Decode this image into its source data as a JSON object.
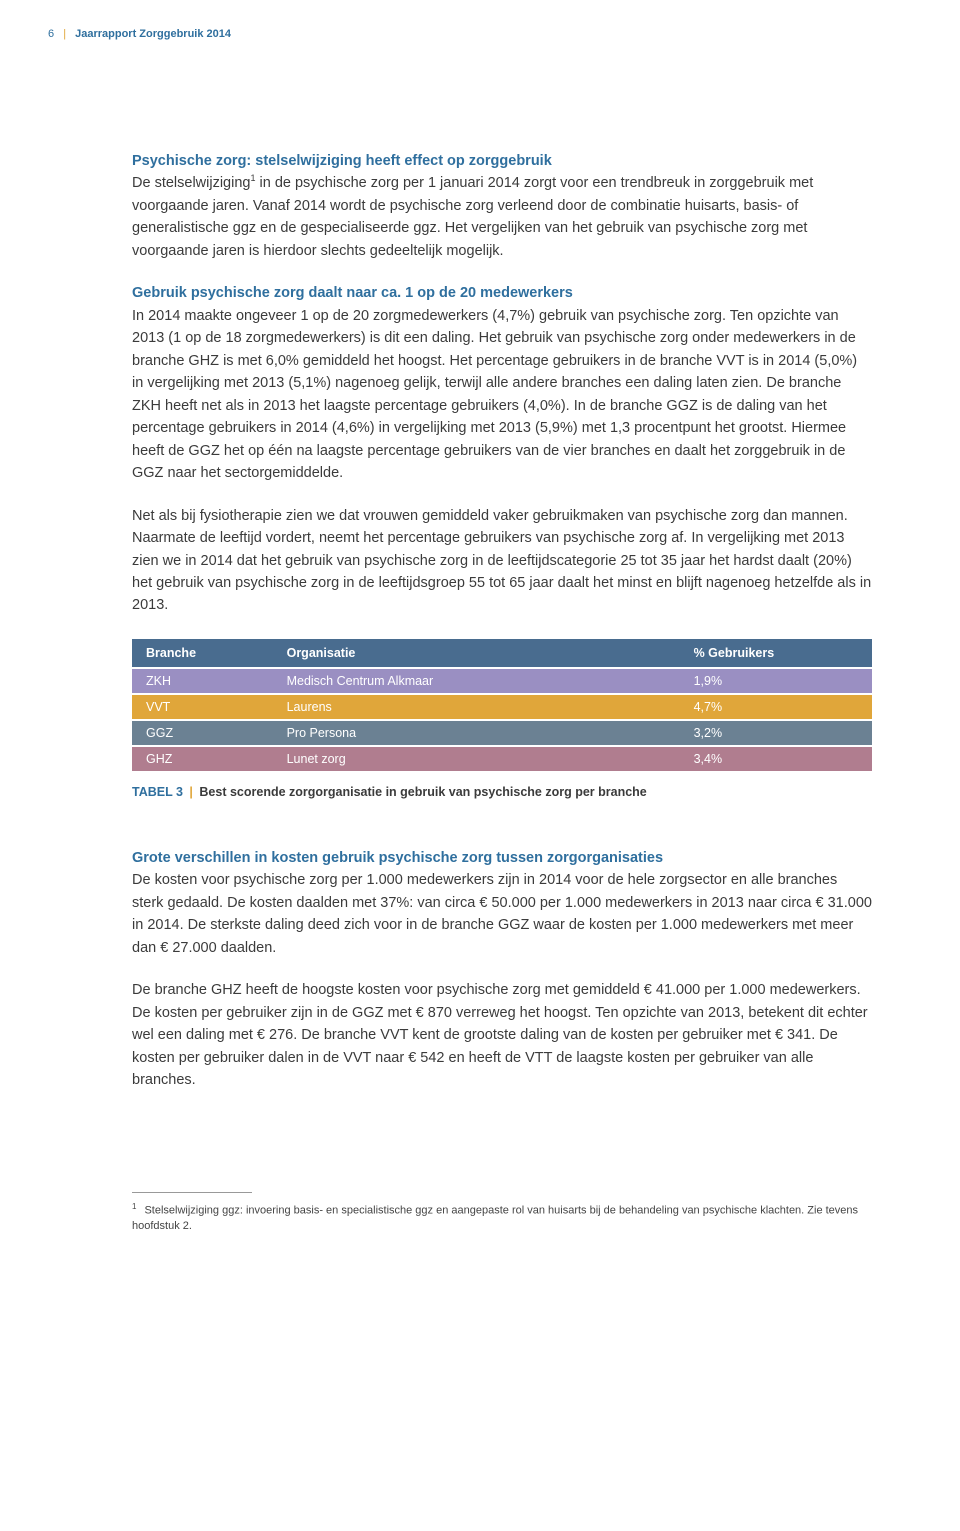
{
  "runningHead": {
    "pageNum": "6",
    "sep": "|",
    "title": "Jaarrapport Zorggebruik 2014"
  },
  "section1": {
    "heading": "Psychische zorg: stelselwijziging heeft effect op zorggebruik",
    "p1a": "De stelselwijziging",
    "p1sup": "1",
    "p1b": " in de psychische zorg per 1 januari 2014 zorgt voor een trendbreuk in zorggebruik met voorgaande jaren. Vanaf 2014 wordt de psychische zorg verleend door de combinatie huisarts, basis- of generalistische ggz en de gespecialiseerde ggz. Het vergelijken van het gebruik van psychische zorg met voorgaande jaren is hierdoor slechts gedeeltelijk mogelijk."
  },
  "section2": {
    "heading": "Gebruik psychische zorg daalt naar ca. 1 op de 20 medewerkers",
    "p1": "In 2014 maakte ongeveer 1 op de 20 zorgmedewerkers (4,7%) gebruik van psychische zorg. Ten opzichte van 2013 (1 op de 18 zorgmedewerkers) is dit een daling. Het gebruik van psychische zorg onder medewerkers in de branche GHZ is met 6,0% gemiddeld het hoogst. Het percentage gebruikers in de branche VVT is in 2014 (5,0%) in vergelijking met 2013 (5,1%) nagenoeg gelijk, terwijl alle andere branches een daling laten zien. De branche ZKH heeft net als in 2013 het laagste percentage gebruikers (4,0%). In de branche GGZ is de daling van het percentage gebruikers in 2014 (4,6%) in vergelijking met 2013 (5,9%) met 1,3 procentpunt het grootst. Hiermee heeft de GGZ het op één na laagste percentage gebruikers van de vier branches en daalt het zorggebruik in de GGZ naar het sectorgemiddelde.",
    "p2": "Net als bij fysiotherapie zien we dat vrouwen gemiddeld vaker gebruikmaken van psychische zorg dan mannen. Naarmate de leeftijd vordert, neemt het percentage gebruikers van psychische zorg af. In vergelijking met 2013 zien we in 2014 dat het gebruik van psychische zorg in de leeftijdscategorie 25 tot 35 jaar het hardst daalt (20%) het gebruik van psychische zorg in de leeftijdsgroep 55 tot 65 jaar daalt het minst en blijft nagenoeg hetzelfde als in 2013."
  },
  "table": {
    "columns": [
      "Branche",
      "Organisatie",
      "% Gebruikers"
    ],
    "rows": [
      {
        "cls": "row-zkh",
        "cells": [
          "ZKH",
          "Medisch Centrum Alkmaar",
          "1,9%"
        ]
      },
      {
        "cls": "row-vvt",
        "cells": [
          "VVT",
          "Laurens",
          "4,7%"
        ]
      },
      {
        "cls": "row-ggz",
        "cells": [
          "GGZ",
          "Pro Persona",
          "3,2%"
        ]
      },
      {
        "cls": "row-ghz",
        "cells": [
          "GHZ",
          "Lunet zorg",
          "3,4%"
        ]
      }
    ],
    "caption": {
      "label": "TABEL 3",
      "sep": "|",
      "text": "Best scorende zorgorganisatie in gebruik van psychische zorg per branche"
    }
  },
  "section3": {
    "heading": "Grote verschillen in kosten gebruik psychische zorg tussen zorgorganisaties",
    "p1": "De kosten voor psychische zorg per 1.000 medewerkers zijn in 2014 voor de hele zorgsector en alle branches sterk gedaald. De kosten daalden met 37%: van circa € 50.000 per 1.000 medewerkers in 2013 naar circa € 31.000 in 2014. De sterkste daling deed zich voor in de branche GGZ waar de kosten per 1.000 medewerkers met meer dan € 27.000 daalden.",
    "p2": "De branche GHZ heeft de hoogste kosten voor psychische zorg met gemiddeld € 41.000 per 1.000 medewerkers. De kosten per gebruiker zijn in de GGZ met € 870 verreweg het hoogst. Ten opzichte van 2013, betekent dit echter wel een daling met € 276. De branche VVT kent de grootste daling van de kosten per gebruiker met € 341. De kosten per gebruiker dalen in de VVT naar € 542 en heeft de VTT de laagste kosten per gebruiker van alle branches."
  },
  "footnote": {
    "num": "1",
    "text": "Stelselwijziging ggz: invoering basis- en specialistische ggz en aangepaste rol van huisarts bij de behandeling van psychische klachten. Zie tevens hoofdstuk 2."
  },
  "colors": {
    "blue": "#2f6f9e",
    "orange": "#e0a63a",
    "headerRow": "#496c8f",
    "zkh": "#9a8fc2",
    "vvt": "#e0a63a",
    "ggz": "#6b8193",
    "ghz": "#b07d8f",
    "text": "#3b3b3b",
    "background": "#ffffff"
  }
}
